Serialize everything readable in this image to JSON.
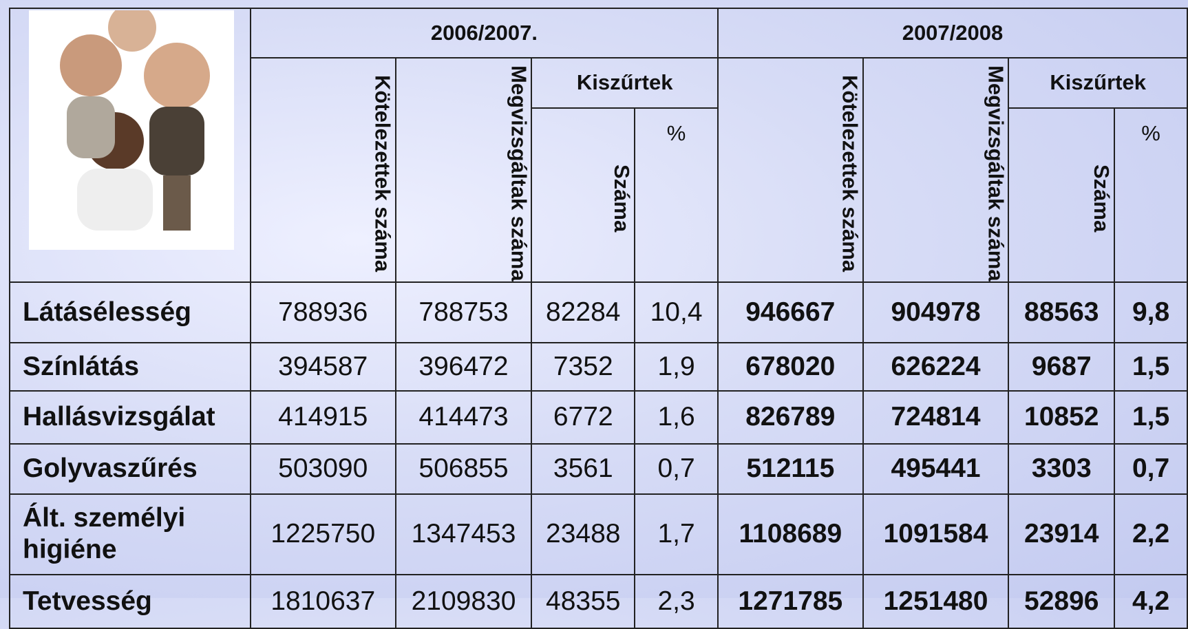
{
  "header": {
    "groups": [
      {
        "year": "2006/2007.",
        "columns": [
          "Kötelezettek száma",
          "Megvizsgáltak száma"
        ],
        "filtered": "Kiszűrtek",
        "filtered_columns": [
          "Száma",
          "%"
        ]
      },
      {
        "year": "2007/2008",
        "columns": [
          "Kötelezettek száma",
          "Megvizsgáltak száma"
        ],
        "filtered": "Kiszűrtek",
        "filtered_columns": [
          "Száma",
          "%"
        ]
      }
    ]
  },
  "table": {
    "rows": [
      {
        "label": "Látásélesség",
        "values": [
          "788936",
          "788753",
          "82284",
          "10,4",
          "946667",
          "904978",
          "88563",
          "9,8"
        ]
      },
      {
        "label": "Színlátás",
        "values": [
          "394587",
          "396472",
          "7352",
          "1,9",
          "678020",
          "626224",
          "9687",
          "1,5"
        ]
      },
      {
        "label": "Hallásvizsgálat",
        "values": [
          "414915",
          "414473",
          "6772",
          "1,6",
          "826789",
          "724814",
          "10852",
          "1,5"
        ]
      },
      {
        "label": "Golyvaszűrés",
        "values": [
          "503090",
          "506855",
          "3561",
          "0,7",
          "512115",
          "495441",
          "3303",
          "0,7"
        ]
      },
      {
        "label": "Ált. személyi higiéne",
        "values": [
          "1225750",
          "1347453",
          "23488",
          "1,7",
          "1108689",
          "1091584",
          "23914",
          "2,2"
        ]
      },
      {
        "label": "Tetvesség",
        "values": [
          "1810637",
          "2109830",
          "48355",
          "2,3",
          "1271785",
          "1251480",
          "52896",
          "4,2"
        ]
      }
    ]
  }
}
